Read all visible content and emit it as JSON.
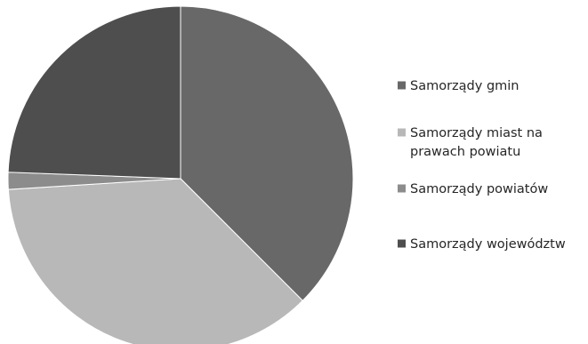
{
  "chart_data": {
    "type": "pie",
    "title": "",
    "slices": [
      {
        "label": "Samorządy gmin",
        "value": 37.5,
        "color": "#686868"
      },
      {
        "label": "Samorządy miast na prawach powiatu",
        "value": 36.5,
        "color": "#b8b8b8"
      },
      {
        "label": "Samorządy powiatów",
        "value": 1.6,
        "color": "#8c8c8c"
      },
      {
        "label": "Samorządy województw",
        "value": 24.4,
        "color": "#4e4e4e"
      }
    ],
    "legend": {
      "placement": "right",
      "entries": [
        {
          "lines": [
            "Samorządy gmin"
          ]
        },
        {
          "lines": [
            "Samorządy miast na",
            "prawach powiatu"
          ]
        },
        {
          "lines": [
            "Samorządy powiatów"
          ]
        },
        {
          "lines": [
            "Samorządy województw"
          ]
        }
      ]
    }
  }
}
